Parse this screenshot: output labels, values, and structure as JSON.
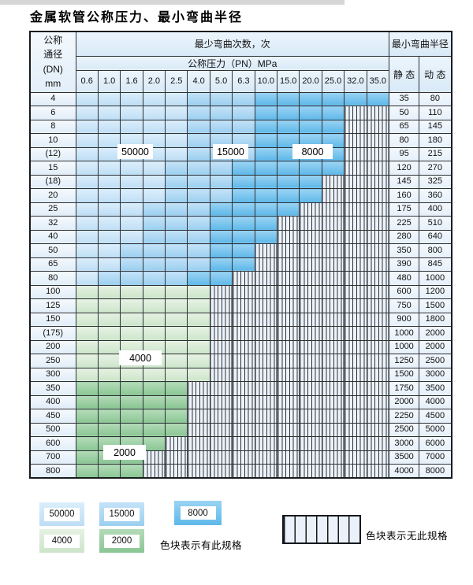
{
  "title": "金属软管公称压力、最小弯曲半径",
  "table": {
    "dn_header_lines": [
      "公称",
      "通径",
      "(DN)",
      "mm"
    ],
    "bend_cycles_header": "最少弯曲次数，次",
    "pressure_header": "公称压力（PN）MPa",
    "radius_header": "最小弯曲半径",
    "static_header": "静 态",
    "dynamic_header": "动 态",
    "pressure_columns": [
      "0.6",
      "1.0",
      "1.6",
      "2.0",
      "2.5",
      "4.0",
      "5.0",
      "6.3",
      "10.0",
      "15.0",
      "20.0",
      "25.0",
      "32.0",
      "35.0"
    ],
    "zone_meaning": {
      "50000": "min bend cycles 50000",
      "15000": "min bend cycles 15000",
      "8000": "min bend cycles 8000",
      "4000": "min bend cycles 4000",
      "2000": "min bend cycles 2000",
      "x": "no such specification"
    },
    "rows": [
      {
        "dn": "4",
        "zones": [
          "50000",
          "50000",
          "50000",
          "50000",
          "50000",
          "15000",
          "15000",
          "15000",
          "8000",
          "8000",
          "8000",
          "8000",
          "8000",
          "8000"
        ],
        "static": "35",
        "dynamic": "80"
      },
      {
        "dn": "6",
        "zones": [
          "50000",
          "50000",
          "50000",
          "50000",
          "50000",
          "15000",
          "15000",
          "15000",
          "8000",
          "8000",
          "8000",
          "8000",
          "x",
          "x"
        ],
        "static": "50",
        "dynamic": "110"
      },
      {
        "dn": "8",
        "zones": [
          "50000",
          "50000",
          "50000",
          "50000",
          "50000",
          "15000",
          "15000",
          "15000",
          "8000",
          "8000",
          "8000",
          "8000",
          "x",
          "x"
        ],
        "static": "65",
        "dynamic": "145"
      },
      {
        "dn": "10",
        "zones": [
          "50000",
          "50000",
          "50000",
          "50000",
          "50000",
          "15000",
          "15000",
          "15000",
          "8000",
          "8000",
          "8000",
          "8000",
          "x",
          "x"
        ],
        "static": "80",
        "dynamic": "180"
      },
      {
        "dn": "(12)",
        "zones": [
          "50000",
          "50000",
          "50000",
          "50000",
          "50000",
          "15000",
          "15000",
          "15000",
          "8000",
          "8000",
          "8000",
          "8000",
          "x",
          "x"
        ],
        "static": "95",
        "dynamic": "215"
      },
      {
        "dn": "15",
        "zones": [
          "50000",
          "50000",
          "50000",
          "50000",
          "15000",
          "15000",
          "15000",
          "8000",
          "8000",
          "8000",
          "8000",
          "8000",
          "x",
          "x"
        ],
        "static": "120",
        "dynamic": "270"
      },
      {
        "dn": "(18)",
        "zones": [
          "50000",
          "50000",
          "50000",
          "50000",
          "15000",
          "15000",
          "15000",
          "8000",
          "8000",
          "8000",
          "8000",
          "x",
          "x",
          "x"
        ],
        "static": "145",
        "dynamic": "325"
      },
      {
        "dn": "20",
        "zones": [
          "50000",
          "50000",
          "50000",
          "50000",
          "15000",
          "15000",
          "15000",
          "8000",
          "8000",
          "8000",
          "8000",
          "x",
          "x",
          "x"
        ],
        "static": "160",
        "dynamic": "360"
      },
      {
        "dn": "25",
        "zones": [
          "50000",
          "50000",
          "50000",
          "15000",
          "15000",
          "15000",
          "8000",
          "8000",
          "8000",
          "8000",
          "x",
          "x",
          "x",
          "x"
        ],
        "static": "175",
        "dynamic": "400"
      },
      {
        "dn": "32",
        "zones": [
          "50000",
          "50000",
          "50000",
          "15000",
          "15000",
          "15000",
          "8000",
          "8000",
          "8000",
          "x",
          "x",
          "x",
          "x",
          "x"
        ],
        "static": "225",
        "dynamic": "510"
      },
      {
        "dn": "40",
        "zones": [
          "50000",
          "50000",
          "50000",
          "15000",
          "15000",
          "15000",
          "8000",
          "8000",
          "8000",
          "x",
          "x",
          "x",
          "x",
          "x"
        ],
        "static": "280",
        "dynamic": "640"
      },
      {
        "dn": "50",
        "zones": [
          "50000",
          "50000",
          "15000",
          "15000",
          "15000",
          "15000",
          "8000",
          "8000",
          "x",
          "x",
          "x",
          "x",
          "x",
          "x"
        ],
        "static": "350",
        "dynamic": "800"
      },
      {
        "dn": "65",
        "zones": [
          "50000",
          "50000",
          "15000",
          "15000",
          "15000",
          "15000",
          "8000",
          "8000",
          "x",
          "x",
          "x",
          "x",
          "x",
          "x"
        ],
        "static": "390",
        "dynamic": "845"
      },
      {
        "dn": "80",
        "zones": [
          "50000",
          "15000",
          "15000",
          "15000",
          "15000",
          "8000",
          "8000",
          "x",
          "x",
          "x",
          "x",
          "x",
          "x",
          "x"
        ],
        "static": "480",
        "dynamic": "1000"
      },
      {
        "dn": "100",
        "zones": [
          "4000",
          "4000",
          "4000",
          "4000",
          "4000",
          "4000",
          "x",
          "x",
          "x",
          "x",
          "x",
          "x",
          "x",
          "x"
        ],
        "static": "600",
        "dynamic": "1200"
      },
      {
        "dn": "125",
        "zones": [
          "4000",
          "4000",
          "4000",
          "4000",
          "4000",
          "4000",
          "x",
          "x",
          "x",
          "x",
          "x",
          "x",
          "x",
          "x"
        ],
        "static": "750",
        "dynamic": "1500"
      },
      {
        "dn": "150",
        "zones": [
          "4000",
          "4000",
          "4000",
          "4000",
          "4000",
          "4000",
          "x",
          "x",
          "x",
          "x",
          "x",
          "x",
          "x",
          "x"
        ],
        "static": "900",
        "dynamic": "1800"
      },
      {
        "dn": "(175)",
        "zones": [
          "4000",
          "4000",
          "4000",
          "4000",
          "4000",
          "4000",
          "x",
          "x",
          "x",
          "x",
          "x",
          "x",
          "x",
          "x"
        ],
        "static": "1000",
        "dynamic": "2000"
      },
      {
        "dn": "200",
        "zones": [
          "4000",
          "4000",
          "4000",
          "4000",
          "4000",
          "4000",
          "x",
          "x",
          "x",
          "x",
          "x",
          "x",
          "x",
          "x"
        ],
        "static": "1000",
        "dynamic": "2000"
      },
      {
        "dn": "250",
        "zones": [
          "4000",
          "4000",
          "4000",
          "4000",
          "4000",
          "4000",
          "x",
          "x",
          "x",
          "x",
          "x",
          "x",
          "x",
          "x"
        ],
        "static": "1250",
        "dynamic": "2500"
      },
      {
        "dn": "300",
        "zones": [
          "4000",
          "4000",
          "4000",
          "4000",
          "4000",
          "4000",
          "x",
          "x",
          "x",
          "x",
          "x",
          "x",
          "x",
          "x"
        ],
        "static": "1500",
        "dynamic": "3000"
      },
      {
        "dn": "350",
        "zones": [
          "2000",
          "2000",
          "2000",
          "2000",
          "2000",
          "x",
          "x",
          "x",
          "x",
          "x",
          "x",
          "x",
          "x",
          "x"
        ],
        "static": "1750",
        "dynamic": "3500"
      },
      {
        "dn": "400",
        "zones": [
          "2000",
          "2000",
          "2000",
          "2000",
          "2000",
          "x",
          "x",
          "x",
          "x",
          "x",
          "x",
          "x",
          "x",
          "x"
        ],
        "static": "2000",
        "dynamic": "4000"
      },
      {
        "dn": "450",
        "zones": [
          "2000",
          "2000",
          "2000",
          "2000",
          "2000",
          "x",
          "x",
          "x",
          "x",
          "x",
          "x",
          "x",
          "x",
          "x"
        ],
        "static": "2250",
        "dynamic": "4500"
      },
      {
        "dn": "500",
        "zones": [
          "2000",
          "2000",
          "2000",
          "2000",
          "2000",
          "x",
          "x",
          "x",
          "x",
          "x",
          "x",
          "x",
          "x",
          "x"
        ],
        "static": "2500",
        "dynamic": "5000"
      },
      {
        "dn": "600",
        "zones": [
          "2000",
          "2000",
          "2000",
          "2000",
          "x",
          "x",
          "x",
          "x",
          "x",
          "x",
          "x",
          "x",
          "x",
          "x"
        ],
        "static": "3000",
        "dynamic": "6000"
      },
      {
        "dn": "700",
        "zones": [
          "2000",
          "2000",
          "2000",
          "x",
          "x",
          "x",
          "x",
          "x",
          "x",
          "x",
          "x",
          "x",
          "x",
          "x"
        ],
        "static": "3500",
        "dynamic": "7000"
      },
      {
        "dn": "800",
        "zones": [
          "2000",
          "2000",
          "2000",
          "x",
          "x",
          "x",
          "x",
          "x",
          "x",
          "x",
          "x",
          "x",
          "x",
          "x"
        ],
        "static": "4000",
        "dynamic": "8000"
      }
    ]
  },
  "zone_labels": {
    "l50000": "50000",
    "l15000": "15000",
    "l8000": "8000",
    "l4000": "4000",
    "l2000": "2000"
  },
  "legend": {
    "sw50000": "50000",
    "sw15000": "15000",
    "sw8000": "8000",
    "sw4000": "4000",
    "sw2000": "2000",
    "has_spec_text": "色块表示有此规格",
    "no_spec_text": "色块表示无此规格"
  },
  "colors": {
    "zone_50000": "#bedef5",
    "zone_15000": "#9bcff0",
    "zone_8000": "#5eb8e9",
    "zone_4000": "#cce5ca",
    "zone_2000": "#8ac694",
    "no_spec_bg": "#edf3fb",
    "grid_line": "#2d3136",
    "header_bg": "#d9e9f7"
  }
}
